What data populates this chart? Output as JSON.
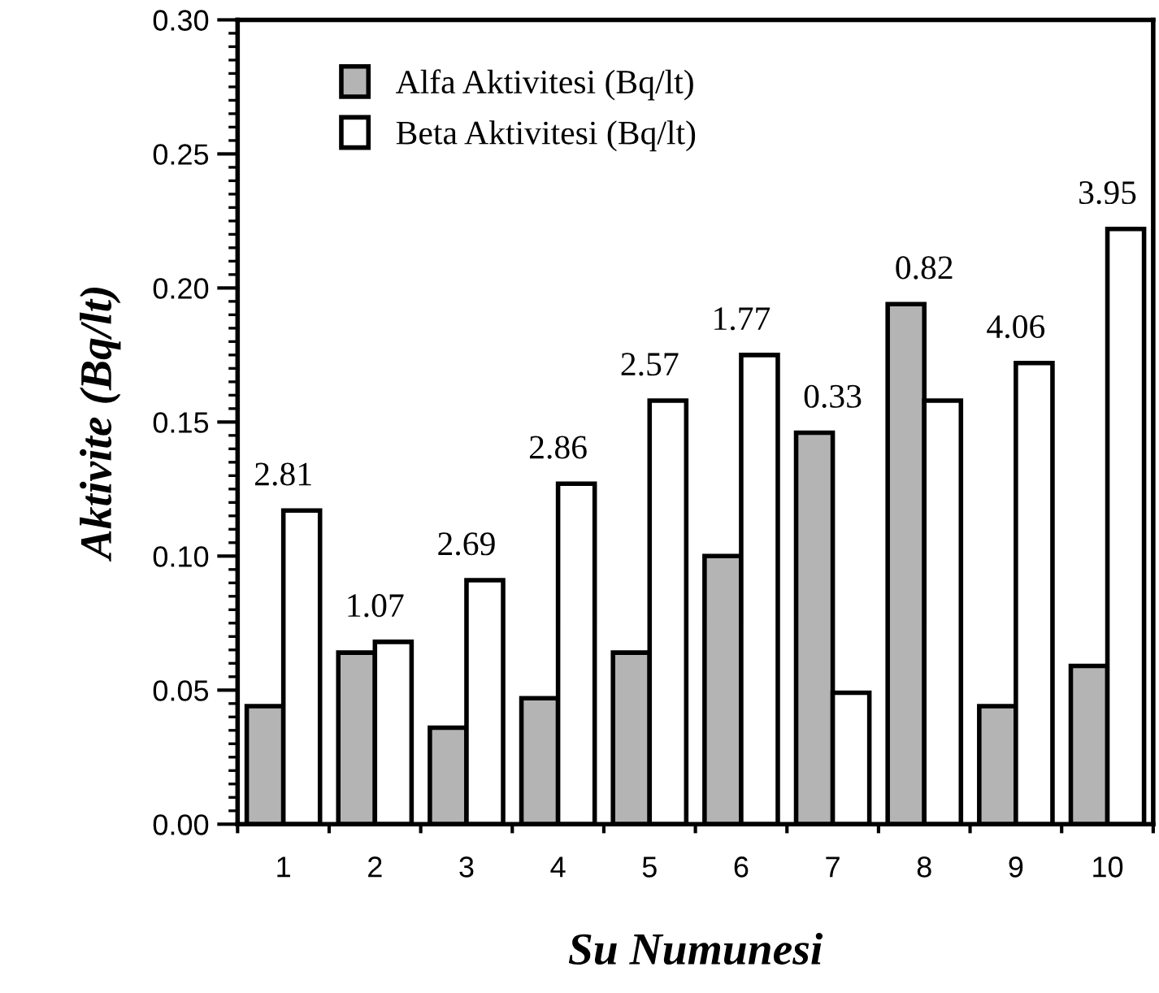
{
  "chart_data": {
    "type": "bar",
    "xlabel": "Su Numunesi",
    "ylabel": "Aktivite (Bq/lt)",
    "categories": [
      "1",
      "2",
      "3",
      "4",
      "5",
      "6",
      "7",
      "8",
      "9",
      "10"
    ],
    "series": [
      {
        "name": "Alfa Aktivitesi (Bq/lt)",
        "color": "#b4b4b4",
        "values": [
          0.044,
          0.064,
          0.036,
          0.047,
          0.064,
          0.1,
          0.146,
          0.194,
          0.044,
          0.059
        ]
      },
      {
        "name": "Beta Aktivitesi (Bq/lt)",
        "color": "#ffffff",
        "values": [
          0.117,
          0.068,
          0.091,
          0.127,
          0.158,
          0.175,
          0.049,
          0.158,
          0.172,
          0.222
        ]
      }
    ],
    "annotations": [
      {
        "text": "2.81",
        "x": "1",
        "y": 0.117
      },
      {
        "text": "1.07",
        "x": "2",
        "y": 0.068
      },
      {
        "text": "2.69",
        "x": "3",
        "y": 0.091
      },
      {
        "text": "2.86",
        "x": "4",
        "y": 0.127
      },
      {
        "text": "2.57",
        "x": "5",
        "y": 0.158
      },
      {
        "text": "1.77",
        "x": "6",
        "y": 0.175
      },
      {
        "text": "0.33",
        "x": "7",
        "y": 0.146
      },
      {
        "text": "0.82",
        "x": "8",
        "y": 0.194
      },
      {
        "text": "4.06",
        "x": "9",
        "y": 0.172
      },
      {
        "text": "3.95",
        "x": "10",
        "y": 0.222
      }
    ],
    "ylim": [
      0,
      0.3
    ],
    "yticks": [
      {
        "value": 0,
        "label": "0.00"
      },
      {
        "value": 0.05,
        "label": "0.05"
      },
      {
        "value": 0.1,
        "label": "0.10"
      },
      {
        "value": 0.15,
        "label": "0.15"
      },
      {
        "value": 0.2,
        "label": "0.20"
      },
      {
        "value": 0.25,
        "label": "0.25"
      },
      {
        "value": 0.3,
        "label": "0.30"
      }
    ],
    "legend": "top left",
    "grid": false
  }
}
